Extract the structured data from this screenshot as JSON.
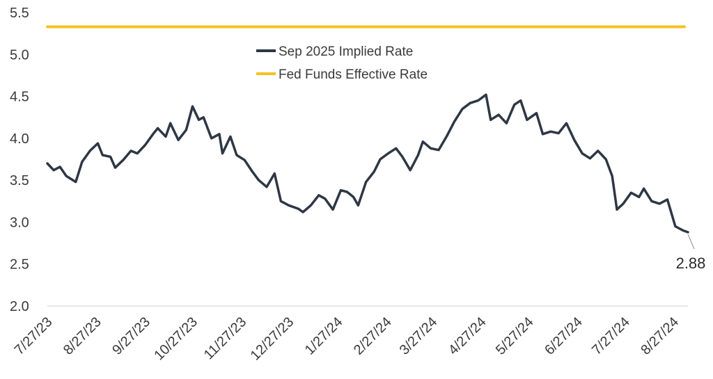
{
  "chart_data": {
    "type": "line",
    "title": "",
    "xlabel": "",
    "ylabel": "",
    "ylim": [
      2.0,
      5.5
    ],
    "y_ticks": [
      "2.0",
      "2.5",
      "3.0",
      "3.5",
      "4.0",
      "4.5",
      "5.0",
      "5.5"
    ],
    "x_ticks": [
      "7/27/23",
      "8/27/23",
      "9/27/23",
      "10/27/23",
      "11/27/23",
      "12/27/23",
      "1/27/24",
      "2/27/24",
      "3/27/24",
      "4/27/24",
      "5/27/24",
      "6/27/24",
      "7/27/24",
      "8/27/24"
    ],
    "grid": false,
    "legend_position": "top-center",
    "series": [
      {
        "name": "Sep 2025 Implied Rate",
        "color": "#2e3744",
        "points": [
          [
            "7/27/23",
            3.7
          ],
          [
            "7/31/23",
            3.62
          ],
          [
            "8/4/23",
            3.66
          ],
          [
            "8/8/23",
            3.55
          ],
          [
            "8/14/23",
            3.48
          ],
          [
            "8/18/23",
            3.72
          ],
          [
            "8/23/23",
            3.85
          ],
          [
            "8/28/23",
            3.94
          ],
          [
            "8/31/23",
            3.8
          ],
          [
            "9/5/23",
            3.78
          ],
          [
            "9/8/23",
            3.65
          ],
          [
            "9/13/23",
            3.74
          ],
          [
            "9/18/23",
            3.85
          ],
          [
            "9/22/23",
            3.82
          ],
          [
            "9/27/23",
            3.92
          ],
          [
            "10/2/23",
            4.05
          ],
          [
            "10/5/23",
            4.12
          ],
          [
            "10/10/23",
            4.02
          ],
          [
            "10/13/23",
            4.18
          ],
          [
            "10/18/23",
            3.98
          ],
          [
            "10/23/23",
            4.1
          ],
          [
            "10/27/23",
            4.38
          ],
          [
            "10/31/23",
            4.22
          ],
          [
            "11/3/23",
            4.25
          ],
          [
            "11/8/23",
            4.0
          ],
          [
            "11/13/23",
            4.05
          ],
          [
            "11/15/23",
            3.82
          ],
          [
            "11/20/23",
            4.02
          ],
          [
            "11/24/23",
            3.8
          ],
          [
            "11/29/23",
            3.74
          ],
          [
            "12/4/23",
            3.6
          ],
          [
            "12/8/23",
            3.5
          ],
          [
            "12/13/23",
            3.42
          ],
          [
            "12/18/23",
            3.58
          ],
          [
            "12/22/23",
            3.25
          ],
          [
            "12/27/23",
            3.2
          ],
          [
            "1/2/24",
            3.16
          ],
          [
            "1/5/24",
            3.12
          ],
          [
            "1/10/24",
            3.2
          ],
          [
            "1/15/24",
            3.32
          ],
          [
            "1/19/24",
            3.28
          ],
          [
            "1/24/24",
            3.15
          ],
          [
            "1/29/24",
            3.38
          ],
          [
            "2/2/24",
            3.36
          ],
          [
            "2/6/24",
            3.3
          ],
          [
            "2/9/24",
            3.2
          ],
          [
            "2/14/24",
            3.48
          ],
          [
            "2/19/24",
            3.6
          ],
          [
            "2/23/24",
            3.75
          ],
          [
            "2/28/24",
            3.82
          ],
          [
            "3/4/24",
            3.88
          ],
          [
            "3/8/24",
            3.78
          ],
          [
            "3/13/24",
            3.62
          ],
          [
            "3/18/24",
            3.8
          ],
          [
            "3/21/24",
            3.96
          ],
          [
            "3/26/24",
            3.88
          ],
          [
            "3/31/24",
            3.86
          ],
          [
            "4/5/24",
            4.02
          ],
          [
            "4/10/24",
            4.2
          ],
          [
            "4/15/24",
            4.35
          ],
          [
            "4/20/24",
            4.42
          ],
          [
            "4/25/24",
            4.45
          ],
          [
            "4/30/24",
            4.52
          ],
          [
            "5/3/24",
            4.22
          ],
          [
            "5/8/24",
            4.28
          ],
          [
            "5/13/24",
            4.18
          ],
          [
            "5/18/24",
            4.4
          ],
          [
            "5/22/24",
            4.45
          ],
          [
            "5/26/24",
            4.22
          ],
          [
            "6/1/24",
            4.3
          ],
          [
            "6/5/24",
            4.05
          ],
          [
            "6/10/24",
            4.08
          ],
          [
            "6/15/24",
            4.06
          ],
          [
            "6/20/24",
            4.18
          ],
          [
            "6/25/24",
            3.98
          ],
          [
            "6/30/24",
            3.82
          ],
          [
            "7/5/24",
            3.76
          ],
          [
            "7/10/24",
            3.85
          ],
          [
            "7/15/24",
            3.75
          ],
          [
            "7/19/24",
            3.55
          ],
          [
            "7/22/24",
            3.15
          ],
          [
            "7/26/24",
            3.22
          ],
          [
            "7/31/24",
            3.35
          ],
          [
            "8/5/24",
            3.3
          ],
          [
            "8/8/24",
            3.4
          ],
          [
            "8/13/24",
            3.25
          ],
          [
            "8/18/24",
            3.22
          ],
          [
            "8/23/24",
            3.27
          ],
          [
            "8/28/24",
            2.95
          ],
          [
            "9/2/24",
            2.9
          ],
          [
            "9/5/24",
            2.88
          ]
        ]
      },
      {
        "name": "Fed Funds Effective Rate",
        "color": "#f4c21f",
        "points": [
          [
            "7/27/23",
            5.33
          ],
          [
            "9/5/24",
            5.33
          ]
        ]
      }
    ],
    "annotations": [
      {
        "text": "2.88",
        "x": "9/5/24",
        "y": 2.88
      }
    ]
  }
}
